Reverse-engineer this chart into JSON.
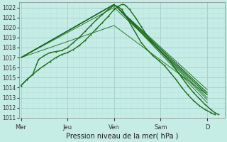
{
  "title": "Pression niveau de la mer( hPa )",
  "bg_color": "#c6ece6",
  "grid_color_major": "#a8d4ce",
  "grid_color_minor": "#b8e4de",
  "line_color": "#1a6b1a",
  "marker_color": "#1a6b1a",
  "ylim": [
    1011,
    1022.5
  ],
  "yticks": [
    1011,
    1012,
    1013,
    1014,
    1015,
    1016,
    1017,
    1018,
    1019,
    1020,
    1021,
    1022
  ],
  "xlabel_ticks": [
    0,
    48,
    96,
    144,
    192
  ],
  "xlabel_labels": [
    "Mer",
    "Jeu",
    "Ven",
    "Sam",
    "D"
  ],
  "xlim": [
    -2,
    210
  ],
  "main_curve": [
    0,
    1014.2,
    6,
    1014.8,
    12,
    1015.3,
    18,
    1015.8,
    24,
    1016.2,
    30,
    1016.6,
    36,
    1017.0,
    42,
    1017.3,
    48,
    1017.5,
    54,
    1017.8,
    60,
    1018.2,
    66,
    1018.7,
    72,
    1019.3,
    78,
    1019.9,
    84,
    1020.5,
    90,
    1021.1,
    96,
    1021.8,
    100,
    1022.1,
    104,
    1022.3,
    106,
    1022.3,
    108,
    1022.2,
    112,
    1021.8,
    118,
    1021.0,
    124,
    1020.1,
    130,
    1019.2,
    136,
    1018.4,
    142,
    1017.8,
    148,
    1017.2,
    154,
    1016.6,
    160,
    1015.8,
    166,
    1015.0,
    172,
    1014.2,
    178,
    1013.5,
    184,
    1012.9,
    190,
    1012.3,
    196,
    1011.8,
    200,
    1011.5,
    204,
    1011.3
  ],
  "ensemble_curves": [
    [
      0,
      1017.0,
      96,
      1022.3,
      192,
      1013.3
    ],
    [
      0,
      1017.0,
      96,
      1022.3,
      192,
      1013.5
    ],
    [
      0,
      1017.0,
      96,
      1022.3,
      192,
      1013.0
    ],
    [
      0,
      1017.0,
      96,
      1022.3,
      192,
      1012.8
    ],
    [
      0,
      1017.0,
      96,
      1022.3,
      192,
      1012.5
    ],
    [
      0,
      1017.0,
      96,
      1022.3,
      192,
      1013.5
    ],
    [
      0,
      1017.0,
      96,
      1022.3,
      192,
      1013.8
    ],
    [
      0,
      1017.0,
      96,
      1022.0,
      192,
      1013.3
    ],
    [
      0,
      1017.0,
      96,
      1020.2,
      192,
      1013.3
    ]
  ],
  "second_curve": [
    0,
    1014.2,
    6,
    1014.8,
    12,
    1015.3,
    18,
    1016.8,
    24,
    1017.2,
    30,
    1017.5,
    36,
    1017.6,
    42,
    1017.7,
    48,
    1018.0,
    54,
    1018.5,
    60,
    1019.0,
    66,
    1019.6,
    72,
    1020.2,
    78,
    1020.8,
    84,
    1021.3,
    90,
    1021.8,
    96,
    1022.2,
    100,
    1022.1,
    104,
    1021.8,
    108,
    1021.2,
    112,
    1020.5,
    118,
    1019.5,
    124,
    1018.5,
    130,
    1017.8,
    136,
    1017.2,
    142,
    1016.7,
    148,
    1016.2,
    154,
    1015.5,
    160,
    1014.8,
    166,
    1014.0,
    172,
    1013.3,
    178,
    1012.7,
    184,
    1012.2,
    190,
    1011.8,
    196,
    1011.5,
    200,
    1011.3
  ]
}
